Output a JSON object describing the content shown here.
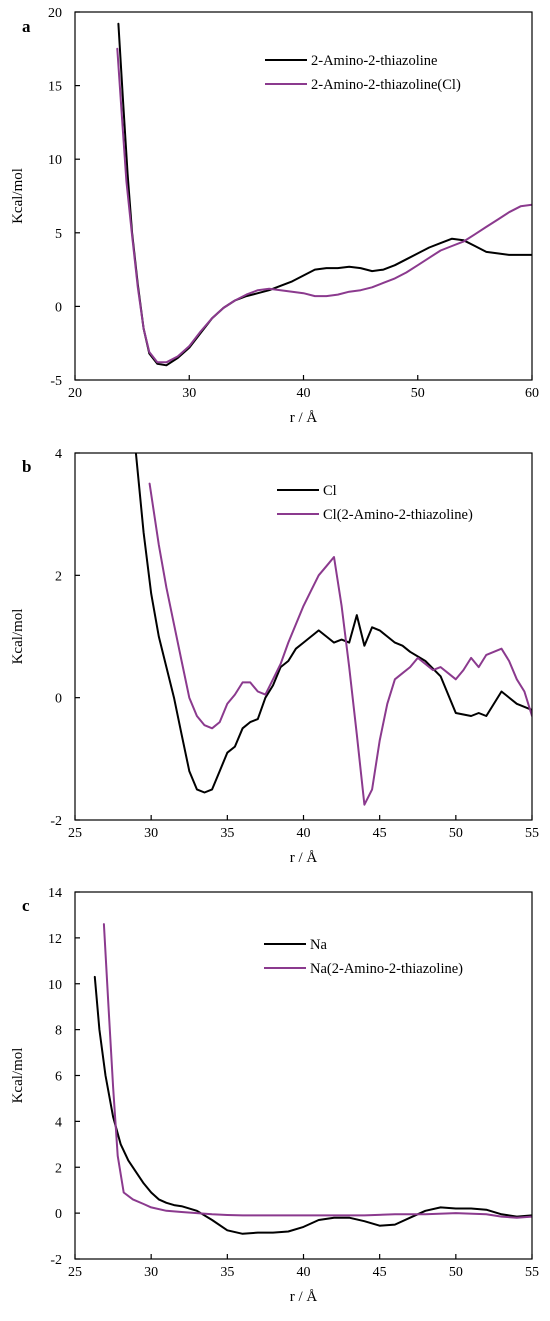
{
  "chart_data": [
    {
      "type": "line",
      "panel_letter": "a",
      "xlabel": "r / Å",
      "ylabel": "Kcal/mol",
      "xlim": [
        20,
        60
      ],
      "ylim": [
        -5,
        20
      ],
      "xticks": [
        20,
        30,
        40,
        50,
        60
      ],
      "yticks": [
        -5,
        0,
        5,
        10,
        15,
        20
      ],
      "legend_position": "top-right",
      "series": [
        {
          "name": "2-Amino-2-thiazoline",
          "color": "#000000",
          "points": [
            [
              23.8,
              19.2
            ],
            [
              24.2,
              14
            ],
            [
              24.6,
              9
            ],
            [
              25,
              5
            ],
            [
              25.5,
              1.5
            ],
            [
              26,
              -1.5
            ],
            [
              26.5,
              -3.2
            ],
            [
              27.2,
              -3.9
            ],
            [
              28,
              -4
            ],
            [
              29,
              -3.5
            ],
            [
              30,
              -2.8
            ],
            [
              31,
              -1.8
            ],
            [
              32,
              -0.8
            ],
            [
              33,
              -0.1
            ],
            [
              34,
              0.4
            ],
            [
              35,
              0.7
            ],
            [
              36,
              0.9
            ],
            [
              37,
              1.1
            ],
            [
              38,
              1.4
            ],
            [
              39,
              1.7
            ],
            [
              40,
              2.1
            ],
            [
              41,
              2.5
            ],
            [
              42,
              2.6
            ],
            [
              43,
              2.6
            ],
            [
              44,
              2.7
            ],
            [
              45,
              2.6
            ],
            [
              46,
              2.4
            ],
            [
              47,
              2.5
            ],
            [
              48,
              2.8
            ],
            [
              49,
              3.2
            ],
            [
              50,
              3.6
            ],
            [
              51,
              4.0
            ],
            [
              52,
              4.3
            ],
            [
              53,
              4.6
            ],
            [
              54,
              4.5
            ],
            [
              55,
              4.1
            ],
            [
              56,
              3.7
            ],
            [
              57,
              3.6
            ],
            [
              58,
              3.5
            ],
            [
              59,
              3.5
            ],
            [
              60,
              3.5
            ]
          ]
        },
        {
          "name": "2-Amino-2-thiazoline(Cl)",
          "color": "#8b3a8e",
          "points": [
            [
              23.7,
              17.5
            ],
            [
              24.1,
              13
            ],
            [
              24.5,
              8.5
            ],
            [
              25,
              4.8
            ],
            [
              25.5,
              1.3
            ],
            [
              26,
              -1.5
            ],
            [
              26.5,
              -3.1
            ],
            [
              27.2,
              -3.8
            ],
            [
              28,
              -3.8
            ],
            [
              29,
              -3.4
            ],
            [
              30,
              -2.7
            ],
            [
              31,
              -1.7
            ],
            [
              32,
              -0.8
            ],
            [
              33,
              -0.1
            ],
            [
              34,
              0.4
            ],
            [
              35,
              0.8
            ],
            [
              36,
              1.1
            ],
            [
              37,
              1.2
            ],
            [
              38,
              1.1
            ],
            [
              39,
              1.0
            ],
            [
              40,
              0.9
            ],
            [
              41,
              0.7
            ],
            [
              42,
              0.7
            ],
            [
              43,
              0.8
            ],
            [
              44,
              1.0
            ],
            [
              45,
              1.1
            ],
            [
              46,
              1.3
            ],
            [
              47,
              1.6
            ],
            [
              48,
              1.9
            ],
            [
              49,
              2.3
            ],
            [
              50,
              2.8
            ],
            [
              51,
              3.3
            ],
            [
              52,
              3.8
            ],
            [
              53,
              4.1
            ],
            [
              54,
              4.4
            ],
            [
              55,
              4.9
            ],
            [
              56,
              5.4
            ],
            [
              57,
              5.9
            ],
            [
              58,
              6.4
            ],
            [
              59,
              6.8
            ],
            [
              60,
              6.9
            ]
          ]
        }
      ]
    },
    {
      "type": "line",
      "panel_letter": "b",
      "xlabel": "r / Å",
      "ylabel": "Kcal/mol",
      "xlim": [
        25,
        55
      ],
      "ylim": [
        -2,
        4
      ],
      "xticks": [
        25,
        30,
        35,
        40,
        45,
        50,
        55
      ],
      "yticks": [
        -2,
        0,
        2,
        4
      ],
      "legend_position": "top-right",
      "series": [
        {
          "name": "Cl",
          "color": "#000000",
          "points": [
            [
              29.0,
              4.0
            ],
            [
              29.5,
              2.7
            ],
            [
              30,
              1.7
            ],
            [
              30.5,
              1.0
            ],
            [
              31,
              0.5
            ],
            [
              31.5,
              0.0
            ],
            [
              32,
              -0.6
            ],
            [
              32.5,
              -1.2
            ],
            [
              33,
              -1.5
            ],
            [
              33.5,
              -1.55
            ],
            [
              34,
              -1.5
            ],
            [
              34.5,
              -1.2
            ],
            [
              35,
              -0.9
            ],
            [
              35.5,
              -0.8
            ],
            [
              36,
              -0.5
            ],
            [
              36.5,
              -0.4
            ],
            [
              37,
              -0.35
            ],
            [
              37.5,
              0.0
            ],
            [
              38,
              0.2
            ],
            [
              38.5,
              0.5
            ],
            [
              39,
              0.6
            ],
            [
              39.5,
              0.8
            ],
            [
              40,
              0.9
            ],
            [
              40.5,
              1.0
            ],
            [
              41,
              1.1
            ],
            [
              41.5,
              1.0
            ],
            [
              42,
              0.9
            ],
            [
              42.5,
              0.95
            ],
            [
              43,
              0.9
            ],
            [
              43.5,
              1.35
            ],
            [
              44,
              0.85
            ],
            [
              44.5,
              1.15
            ],
            [
              45,
              1.1
            ],
            [
              45.5,
              1.0
            ],
            [
              46,
              0.9
            ],
            [
              46.5,
              0.85
            ],
            [
              47,
              0.75
            ],
            [
              48,
              0.6
            ],
            [
              49,
              0.35
            ],
            [
              50,
              -0.25
            ],
            [
              51,
              -0.3
            ],
            [
              51.5,
              -0.25
            ],
            [
              52,
              -0.3
            ],
            [
              53,
              0.1
            ],
            [
              54,
              -0.1
            ],
            [
              55,
              -0.2
            ]
          ]
        },
        {
          "name": "Cl(2-Amino-2-thiazoline)",
          "color": "#8b3a8e",
          "points": [
            [
              29.9,
              3.5
            ],
            [
              30.5,
              2.5
            ],
            [
              31,
              1.8
            ],
            [
              31.5,
              1.2
            ],
            [
              32,
              0.6
            ],
            [
              32.5,
              0.0
            ],
            [
              33,
              -0.3
            ],
            [
              33.5,
              -0.45
            ],
            [
              34,
              -0.5
            ],
            [
              34.5,
              -0.4
            ],
            [
              35,
              -0.1
            ],
            [
              35.5,
              0.05
            ],
            [
              36,
              0.25
            ],
            [
              36.5,
              0.25
            ],
            [
              37,
              0.1
            ],
            [
              37.5,
              0.05
            ],
            [
              38,
              0.3
            ],
            [
              38.5,
              0.55
            ],
            [
              39,
              0.9
            ],
            [
              39.5,
              1.2
            ],
            [
              40,
              1.5
            ],
            [
              40.5,
              1.75
            ],
            [
              41,
              2.0
            ],
            [
              41.5,
              2.15
            ],
            [
              42,
              2.3
            ],
            [
              42.5,
              1.5
            ],
            [
              43,
              0.5
            ],
            [
              43.5,
              -0.6
            ],
            [
              44,
              -1.75
            ],
            [
              44.5,
              -1.5
            ],
            [
              45,
              -0.7
            ],
            [
              45.5,
              -0.1
            ],
            [
              46,
              0.3
            ],
            [
              46.5,
              0.4
            ],
            [
              47,
              0.5
            ],
            [
              47.5,
              0.65
            ],
            [
              48,
              0.55
            ],
            [
              48.5,
              0.45
            ],
            [
              49,
              0.5
            ],
            [
              49.5,
              0.4
            ],
            [
              50,
              0.3
            ],
            [
              50.5,
              0.45
            ],
            [
              51,
              0.65
            ],
            [
              51.5,
              0.5
            ],
            [
              52,
              0.7
            ],
            [
              52.5,
              0.75
            ],
            [
              53,
              0.8
            ],
            [
              53.5,
              0.6
            ],
            [
              54,
              0.3
            ],
            [
              54.5,
              0.1
            ],
            [
              55,
              -0.3
            ]
          ]
        }
      ]
    },
    {
      "type": "line",
      "panel_letter": "c",
      "xlabel": "r / Å",
      "ylabel": "Kcal/mol",
      "xlim": [
        25,
        55
      ],
      "ylim": [
        -2,
        14
      ],
      "xticks": [
        25,
        30,
        35,
        40,
        45,
        50,
        55
      ],
      "yticks": [
        -2,
        0,
        2,
        4,
        6,
        8,
        10,
        12,
        14
      ],
      "legend_position": "top-right",
      "series": [
        {
          "name": "Na",
          "color": "#000000",
          "points": [
            [
              26.3,
              10.3
            ],
            [
              26.6,
              8.0
            ],
            [
              27,
              6.0
            ],
            [
              27.5,
              4.2
            ],
            [
              28,
              3.0
            ],
            [
              28.5,
              2.3
            ],
            [
              29,
              1.8
            ],
            [
              29.5,
              1.3
            ],
            [
              30,
              0.9
            ],
            [
              30.5,
              0.6
            ],
            [
              31,
              0.45
            ],
            [
              31.5,
              0.35
            ],
            [
              32,
              0.3
            ],
            [
              33,
              0.1
            ],
            [
              34,
              -0.3
            ],
            [
              35,
              -0.75
            ],
            [
              36,
              -0.9
            ],
            [
              37,
              -0.85
            ],
            [
              38,
              -0.85
            ],
            [
              39,
              -0.8
            ],
            [
              40,
              -0.6
            ],
            [
              41,
              -0.3
            ],
            [
              42,
              -0.2
            ],
            [
              43,
              -0.2
            ],
            [
              44,
              -0.35
            ],
            [
              45,
              -0.55
            ],
            [
              46,
              -0.5
            ],
            [
              47,
              -0.2
            ],
            [
              48,
              0.1
            ],
            [
              49,
              0.25
            ],
            [
              50,
              0.2
            ],
            [
              51,
              0.2
            ],
            [
              52,
              0.15
            ],
            [
              53,
              -0.05
            ],
            [
              54,
              -0.15
            ],
            [
              55,
              -0.1
            ]
          ]
        },
        {
          "name": "Na(2-Amino-2-thiazoline)",
          "color": "#8b3a8e",
          "points": [
            [
              26.9,
              12.6
            ],
            [
              27.2,
              9.0
            ],
            [
              27.5,
              5.5
            ],
            [
              27.8,
              2.5
            ],
            [
              28.2,
              0.9
            ],
            [
              28.8,
              0.6
            ],
            [
              29.5,
              0.4
            ],
            [
              30,
              0.25
            ],
            [
              31,
              0.1
            ],
            [
              32,
              0.05
            ],
            [
              33,
              0.0
            ],
            [
              34,
              -0.05
            ],
            [
              35,
              -0.08
            ],
            [
              36,
              -0.1
            ],
            [
              38,
              -0.1
            ],
            [
              40,
              -0.1
            ],
            [
              42,
              -0.1
            ],
            [
              44,
              -0.1
            ],
            [
              46,
              -0.05
            ],
            [
              48,
              -0.05
            ],
            [
              50,
              0.0
            ],
            [
              52,
              -0.05
            ],
            [
              53,
              -0.15
            ],
            [
              54,
              -0.2
            ],
            [
              55,
              -0.15
            ]
          ]
        }
      ]
    }
  ]
}
